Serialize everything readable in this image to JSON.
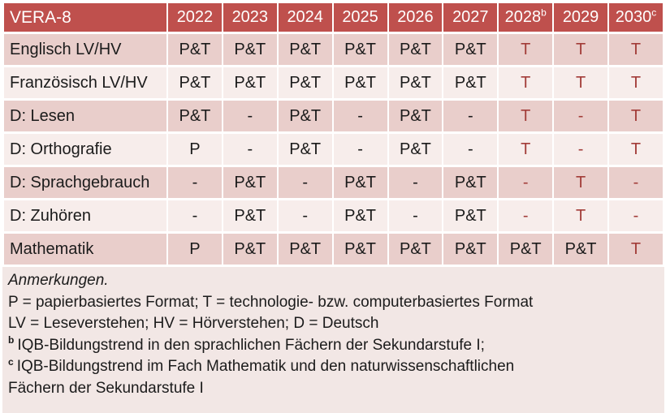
{
  "colors": {
    "header_bg": "#bf504d",
    "row_band_dark": "#e9cecb",
    "row_band_light": "#f7edeb",
    "notes_bg": "#f2e7e5",
    "header_text": "#ffffff",
    "body_text": "#1b1b1b",
    "tech_text": "#a23c38"
  },
  "table": {
    "title": "VERA-8",
    "columns": [
      {
        "label": "2022",
        "sup": ""
      },
      {
        "label": "2023",
        "sup": ""
      },
      {
        "label": "2024",
        "sup": ""
      },
      {
        "label": "2025",
        "sup": ""
      },
      {
        "label": "2026",
        "sup": ""
      },
      {
        "label": "2027",
        "sup": ""
      },
      {
        "label": "2028",
        "sup": "b"
      },
      {
        "label": "2029",
        "sup": ""
      },
      {
        "label": "2030",
        "sup": "c"
      }
    ],
    "rows": [
      {
        "label": "Englisch LV/HV",
        "cells": [
          {
            "v": "P&T",
            "tech": false
          },
          {
            "v": "P&T",
            "tech": false
          },
          {
            "v": "P&T",
            "tech": false
          },
          {
            "v": "P&T",
            "tech": false
          },
          {
            "v": "P&T",
            "tech": false
          },
          {
            "v": "P&T",
            "tech": false
          },
          {
            "v": "T",
            "tech": true
          },
          {
            "v": "T",
            "tech": true
          },
          {
            "v": "T",
            "tech": true
          }
        ]
      },
      {
        "label": "Französisch LV/HV",
        "cells": [
          {
            "v": "P&T",
            "tech": false
          },
          {
            "v": "P&T",
            "tech": false
          },
          {
            "v": "P&T",
            "tech": false
          },
          {
            "v": "P&T",
            "tech": false
          },
          {
            "v": "P&T",
            "tech": false
          },
          {
            "v": "P&T",
            "tech": false
          },
          {
            "v": "T",
            "tech": true
          },
          {
            "v": "T",
            "tech": true
          },
          {
            "v": "T",
            "tech": true
          }
        ]
      },
      {
        "label": "D: Lesen",
        "cells": [
          {
            "v": "P&T",
            "tech": false
          },
          {
            "v": "-",
            "tech": false
          },
          {
            "v": "P&T",
            "tech": false
          },
          {
            "v": "-",
            "tech": false
          },
          {
            "v": "P&T",
            "tech": false
          },
          {
            "v": "-",
            "tech": false
          },
          {
            "v": "T",
            "tech": true
          },
          {
            "v": "-",
            "tech": true
          },
          {
            "v": "T",
            "tech": true
          }
        ]
      },
      {
        "label": "D: Orthografie",
        "cells": [
          {
            "v": "P",
            "tech": false
          },
          {
            "v": "-",
            "tech": false
          },
          {
            "v": "P&T",
            "tech": false
          },
          {
            "v": "-",
            "tech": false
          },
          {
            "v": "P&T",
            "tech": false
          },
          {
            "v": "-",
            "tech": false
          },
          {
            "v": "T",
            "tech": true
          },
          {
            "v": "-",
            "tech": true
          },
          {
            "v": "T",
            "tech": true
          }
        ]
      },
      {
        "label": "D: Sprachgebrauch",
        "cells": [
          {
            "v": "-",
            "tech": false
          },
          {
            "v": "P&T",
            "tech": false
          },
          {
            "v": "-",
            "tech": false
          },
          {
            "v": "P&T",
            "tech": false
          },
          {
            "v": "-",
            "tech": false
          },
          {
            "v": "P&T",
            "tech": false
          },
          {
            "v": "-",
            "tech": true
          },
          {
            "v": "T",
            "tech": true
          },
          {
            "v": "-",
            "tech": true
          }
        ]
      },
      {
        "label": "D: Zuhören",
        "cells": [
          {
            "v": "-",
            "tech": false
          },
          {
            "v": "P&T",
            "tech": false
          },
          {
            "v": "-",
            "tech": false
          },
          {
            "v": "P&T",
            "tech": false
          },
          {
            "v": "-",
            "tech": false
          },
          {
            "v": "P&T",
            "tech": false
          },
          {
            "v": "-",
            "tech": true
          },
          {
            "v": "T",
            "tech": true
          },
          {
            "v": "-",
            "tech": true
          }
        ]
      },
      {
        "label": "Mathematik",
        "cells": [
          {
            "v": "P",
            "tech": false
          },
          {
            "v": "P&T",
            "tech": false
          },
          {
            "v": "P&T",
            "tech": false
          },
          {
            "v": "P&T",
            "tech": false
          },
          {
            "v": "P&T",
            "tech": false
          },
          {
            "v": "P&T",
            "tech": false
          },
          {
            "v": "P&T",
            "tech": false
          },
          {
            "v": "P&T",
            "tech": false
          },
          {
            "v": "T",
            "tech": true
          }
        ]
      }
    ]
  },
  "notes": {
    "heading": "Anmerkungen.",
    "lines": [
      {
        "sup": "",
        "text": "P = papierbasiertes Format; T = technologie- bzw. computerbasiertes Format"
      },
      {
        "sup": "",
        "text": "LV = Leseverstehen; HV = Hörverstehen; D = Deutsch"
      },
      {
        "sup": "b",
        "text": "IQB-Bildungstrend in den sprachlichen Fächern der Sekundarstufe I;"
      },
      {
        "sup": "c",
        "text": "IQB-Bildungstrend im Fach Mathematik und den naturwissenschaftlichen"
      },
      {
        "sup": "",
        "text": "Fächern der Sekundarstufe I"
      }
    ]
  }
}
